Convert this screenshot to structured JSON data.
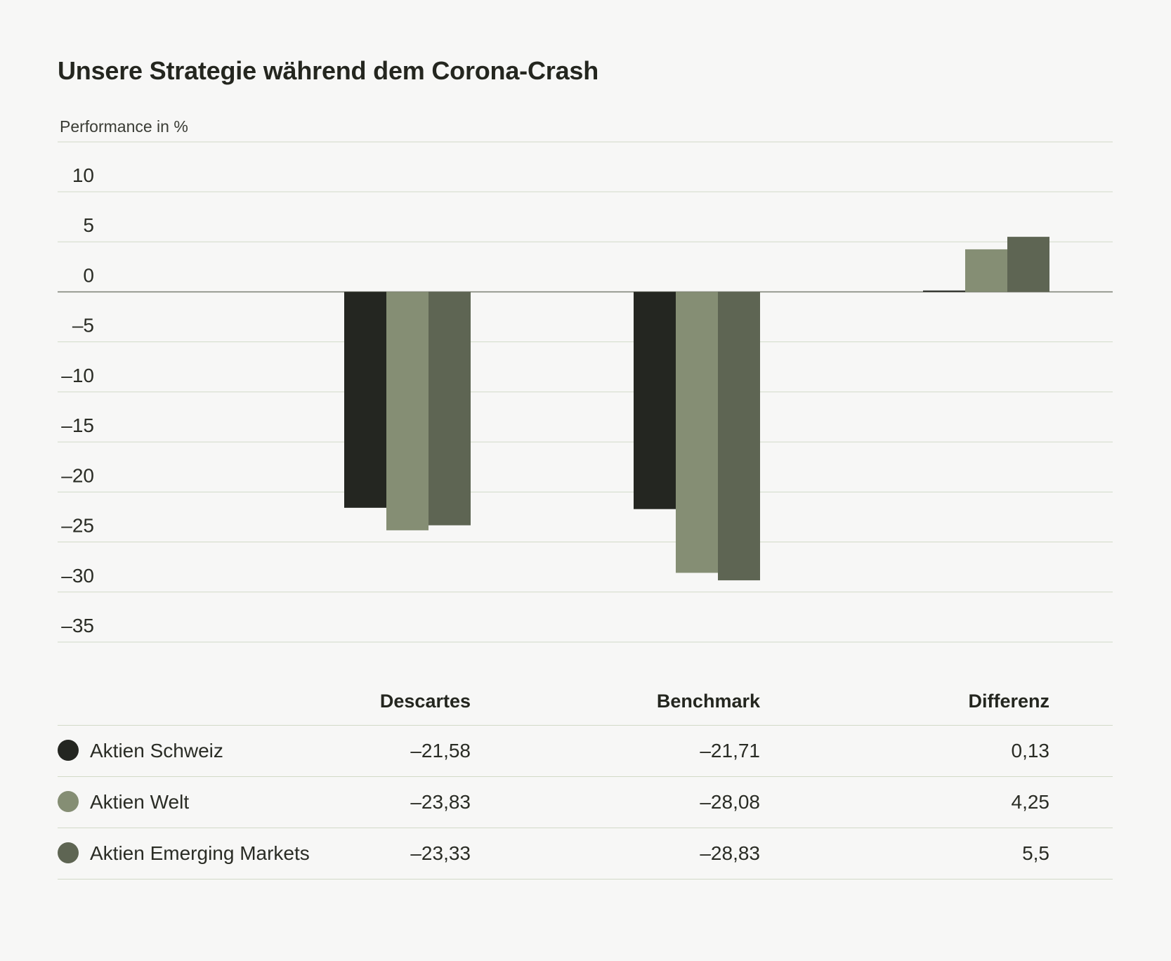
{
  "title": "Unsere Strategie während dem Corona-Crash",
  "chart_data": {
    "type": "bar",
    "ylabel": "Performance in %",
    "ylim": [
      -35,
      10
    ],
    "yticks": [
      10,
      5,
      0,
      -5,
      -10,
      -15,
      -20,
      -25,
      -30,
      -35
    ],
    "ytick_labels": [
      "10",
      "5",
      "0",
      "–5",
      "–10",
      "–15",
      "–20",
      "–25",
      "–30",
      "–35"
    ],
    "grid": true,
    "categories": [
      "Descartes",
      "Benchmark",
      "Differenz"
    ],
    "series": [
      {
        "name": "Aktien Schweiz",
        "color": "#242621",
        "values": [
          -21.58,
          -21.71,
          0.13
        ],
        "labels": [
          "–21,58",
          "–21,71",
          "0,13"
        ]
      },
      {
        "name": "Aktien Welt",
        "color": "#858e74",
        "values": [
          -23.83,
          -28.08,
          4.25
        ],
        "labels": [
          "–23,83",
          "–28,08",
          "4,25"
        ]
      },
      {
        "name": "Aktien Emerging Markets",
        "color": "#5e6553",
        "values": [
          -23.33,
          -28.83,
          5.5
        ],
        "labels": [
          "–23,33",
          "–28,83",
          "5,5"
        ]
      }
    ]
  },
  "colors": {
    "grid": "#d2dac8",
    "zero_line": "#7a7f72",
    "text": "#24261f"
  }
}
